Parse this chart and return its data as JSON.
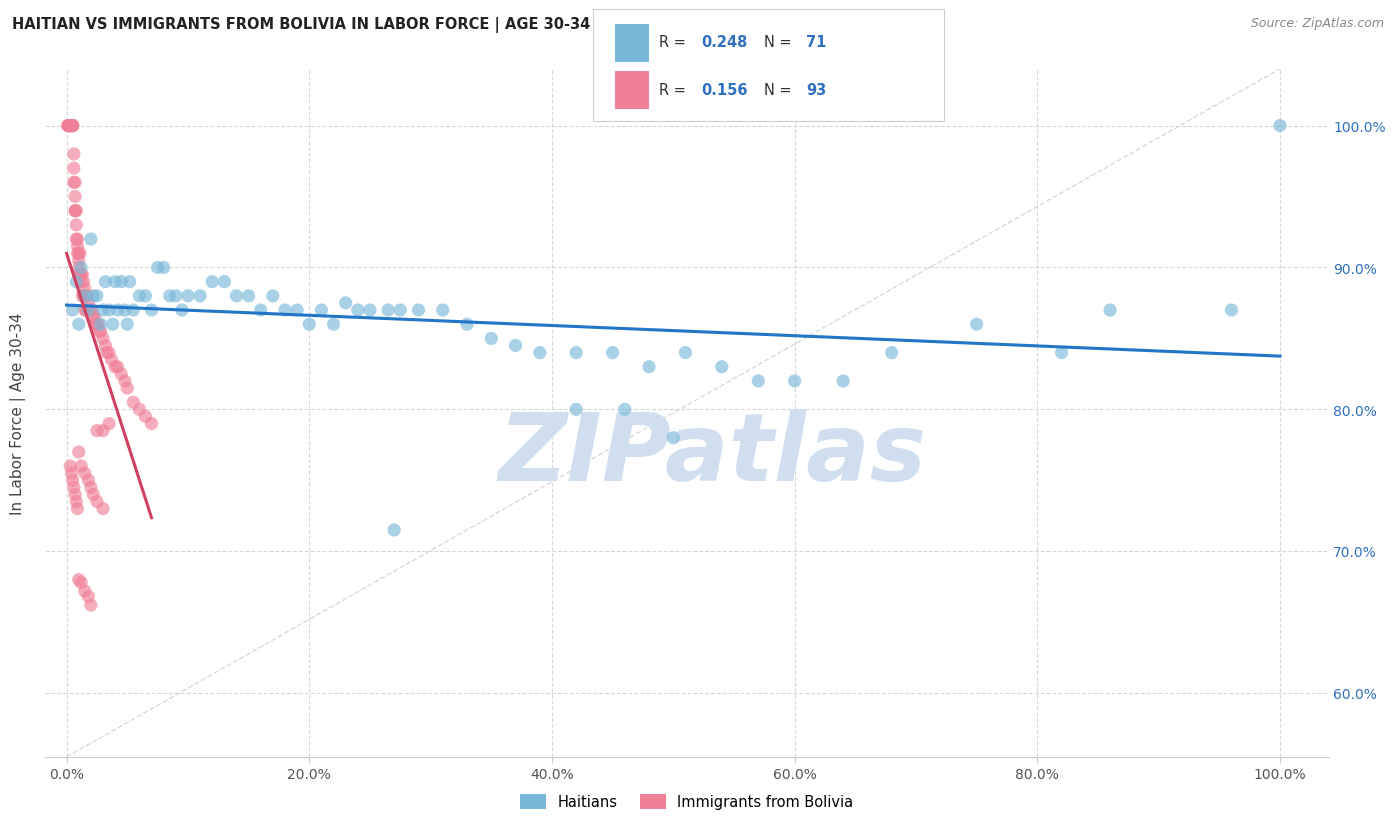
{
  "title": "HAITIAN VS IMMIGRANTS FROM BOLIVIA IN LABOR FORCE | AGE 30-34 CORRELATION CHART",
  "source": "Source: ZipAtlas.com",
  "ylabel": "In Labor Force | Age 30-34",
  "x_tick_labels": [
    "0.0%",
    "20.0%",
    "40.0%",
    "60.0%",
    "80.0%",
    "100.0%"
  ],
  "x_tick_positions": [
    0,
    0.2,
    0.4,
    0.6,
    0.8,
    1.0
  ],
  "y_tick_labels": [
    "60.0%",
    "70.0%",
    "80.0%",
    "90.0%",
    "100.0%"
  ],
  "y_tick_positions": [
    0.6,
    0.7,
    0.8,
    0.9,
    1.0
  ],
  "ylim": [
    0.555,
    1.04
  ],
  "xlim": [
    -0.018,
    1.04
  ],
  "scatter_blue_color": "#7ab8d9",
  "scatter_pink_color": "#f08098",
  "line_blue_color": "#2176c7",
  "line_pink_color": "#d04060",
  "diag_line_color": "#d0d0d0",
  "background_color": "#ffffff",
  "grid_color": "#d8d8d8",
  "watermark_color": "#d0dff0",
  "blue_scatter_x": [
    0.005,
    0.008,
    0.01,
    0.012,
    0.015,
    0.018,
    0.02,
    0.022,
    0.025,
    0.028,
    0.03,
    0.032,
    0.035,
    0.038,
    0.04,
    0.042,
    0.045,
    0.048,
    0.05,
    0.052,
    0.055,
    0.06,
    0.065,
    0.07,
    0.075,
    0.08,
    0.085,
    0.09,
    0.095,
    0.1,
    0.11,
    0.12,
    0.13,
    0.14,
    0.15,
    0.16,
    0.17,
    0.18,
    0.19,
    0.2,
    0.21,
    0.22,
    0.23,
    0.24,
    0.25,
    0.265,
    0.275,
    0.29,
    0.31,
    0.33,
    0.35,
    0.37,
    0.39,
    0.42,
    0.45,
    0.48,
    0.51,
    0.54,
    0.57,
    0.6,
    0.42,
    0.46,
    0.5,
    0.64,
    0.68,
    0.75,
    0.82,
    0.86,
    0.96,
    1.0,
    0.27
  ],
  "blue_scatter_y": [
    0.87,
    0.89,
    0.86,
    0.9,
    0.88,
    0.87,
    0.92,
    0.88,
    0.88,
    0.86,
    0.87,
    0.89,
    0.87,
    0.86,
    0.89,
    0.87,
    0.89,
    0.87,
    0.86,
    0.89,
    0.87,
    0.88,
    0.88,
    0.87,
    0.9,
    0.9,
    0.88,
    0.88,
    0.87,
    0.88,
    0.88,
    0.89,
    0.89,
    0.88,
    0.88,
    0.87,
    0.88,
    0.87,
    0.87,
    0.86,
    0.87,
    0.86,
    0.875,
    0.87,
    0.87,
    0.87,
    0.87,
    0.87,
    0.87,
    0.86,
    0.85,
    0.845,
    0.84,
    0.84,
    0.84,
    0.83,
    0.84,
    0.83,
    0.82,
    0.82,
    0.8,
    0.8,
    0.78,
    0.82,
    0.84,
    0.86,
    0.84,
    0.87,
    0.87,
    1.0,
    0.715
  ],
  "pink_scatter_x": [
    0.001,
    0.001,
    0.002,
    0.002,
    0.002,
    0.003,
    0.003,
    0.003,
    0.004,
    0.004,
    0.004,
    0.005,
    0.005,
    0.005,
    0.005,
    0.006,
    0.006,
    0.006,
    0.007,
    0.007,
    0.007,
    0.007,
    0.008,
    0.008,
    0.008,
    0.009,
    0.009,
    0.009,
    0.01,
    0.01,
    0.01,
    0.01,
    0.011,
    0.011,
    0.012,
    0.012,
    0.013,
    0.013,
    0.014,
    0.014,
    0.015,
    0.015,
    0.016,
    0.016,
    0.017,
    0.018,
    0.019,
    0.02,
    0.021,
    0.022,
    0.023,
    0.024,
    0.025,
    0.026,
    0.027,
    0.028,
    0.03,
    0.032,
    0.033,
    0.035,
    0.037,
    0.04,
    0.042,
    0.045,
    0.048,
    0.05,
    0.055,
    0.06,
    0.065,
    0.07,
    0.025,
    0.03,
    0.035,
    0.003,
    0.004,
    0.005,
    0.006,
    0.007,
    0.008,
    0.009,
    0.01,
    0.012,
    0.015,
    0.018,
    0.02,
    0.022,
    0.025,
    0.03,
    0.01,
    0.012,
    0.015,
    0.018,
    0.02
  ],
  "pink_scatter_y": [
    1.0,
    1.0,
    1.0,
    1.0,
    1.0,
    1.0,
    1.0,
    1.0,
    1.0,
    1.0,
    1.0,
    1.0,
    1.0,
    1.0,
    1.0,
    0.98,
    0.97,
    0.96,
    0.96,
    0.95,
    0.94,
    0.94,
    0.94,
    0.93,
    0.92,
    0.92,
    0.915,
    0.91,
    0.91,
    0.905,
    0.9,
    0.895,
    0.91,
    0.895,
    0.895,
    0.89,
    0.895,
    0.88,
    0.89,
    0.88,
    0.885,
    0.87,
    0.88,
    0.87,
    0.88,
    0.875,
    0.87,
    0.87,
    0.87,
    0.865,
    0.865,
    0.86,
    0.86,
    0.86,
    0.855,
    0.855,
    0.85,
    0.845,
    0.84,
    0.84,
    0.835,
    0.83,
    0.83,
    0.825,
    0.82,
    0.815,
    0.805,
    0.8,
    0.795,
    0.79,
    0.785,
    0.785,
    0.79,
    0.76,
    0.755,
    0.75,
    0.745,
    0.74,
    0.735,
    0.73,
    0.77,
    0.76,
    0.755,
    0.75,
    0.745,
    0.74,
    0.735,
    0.73,
    0.68,
    0.678,
    0.672,
    0.668,
    0.662
  ]
}
